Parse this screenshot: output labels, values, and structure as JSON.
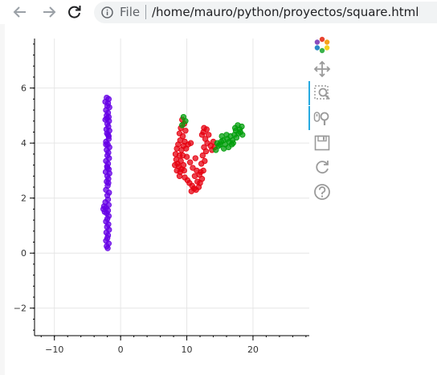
{
  "browser": {
    "scheme": "File",
    "url": "/home/mauro/python/proyectos/square.html",
    "icons": [
      "back-arrow-icon",
      "forward-arrow-icon",
      "reload-icon",
      "info-icon"
    ]
  },
  "toolbar": {
    "tools": [
      "bokeh-logo-icon",
      "pan-icon",
      "box-zoom-icon",
      "wheel-zoom-icon",
      "save-icon",
      "reset-icon",
      "help-icon"
    ],
    "active": [
      "box-zoom-icon",
      "wheel-zoom-icon"
    ]
  },
  "chart_data": {
    "type": "scatter",
    "xlim": [
      -13,
      28.5
    ],
    "ylim": [
      -3,
      7.8
    ],
    "x_ticks": [
      -10,
      0,
      10,
      20
    ],
    "y_ticks": [
      -2,
      0,
      2,
      4,
      6
    ],
    "x_tick_labels": [
      "−10",
      "0",
      "10",
      "20"
    ],
    "y_tick_labels": [
      "−2",
      "0",
      "2",
      "4",
      "6"
    ],
    "grid": true,
    "legend": "none",
    "series": [
      {
        "color": "#6600e6",
        "points": [
          [
            -2.1,
            5.65
          ],
          [
            -1.8,
            5.6
          ],
          [
            -2.3,
            5.5
          ],
          [
            -1.9,
            5.45
          ],
          [
            -2.0,
            5.35
          ],
          [
            -1.7,
            5.3
          ],
          [
            -2.2,
            5.2
          ],
          [
            -1.9,
            5.1
          ],
          [
            -2.1,
            5.0
          ],
          [
            -1.8,
            4.95
          ],
          [
            -2.3,
            4.85
          ],
          [
            -1.75,
            4.8
          ],
          [
            -2.0,
            4.7
          ],
          [
            -1.85,
            4.6
          ],
          [
            -2.15,
            4.5
          ],
          [
            -1.7,
            4.45
          ],
          [
            -2.05,
            4.35
          ],
          [
            -1.9,
            4.3
          ],
          [
            -1.8,
            4.15
          ],
          [
            -2.2,
            4.05
          ],
          [
            -1.95,
            3.95
          ],
          [
            -1.7,
            3.85
          ],
          [
            -2.1,
            3.75
          ],
          [
            -1.85,
            3.65
          ],
          [
            -2.0,
            3.55
          ],
          [
            -1.75,
            3.45
          ],
          [
            -2.2,
            3.35
          ],
          [
            -1.9,
            3.25
          ],
          [
            -2.05,
            3.15
          ],
          [
            -1.8,
            3.05
          ],
          [
            -2.25,
            2.95
          ],
          [
            -1.7,
            2.9
          ],
          [
            -2.0,
            2.8
          ],
          [
            -1.85,
            2.7
          ],
          [
            -2.1,
            2.6
          ],
          [
            -1.95,
            2.45
          ],
          [
            -2.2,
            2.3
          ],
          [
            -1.75,
            2.2
          ],
          [
            -2.0,
            2.1
          ],
          [
            -1.9,
            1.95
          ],
          [
            -2.3,
            1.85
          ],
          [
            -1.8,
            1.75
          ],
          [
            -2.5,
            1.7
          ],
          [
            -2.2,
            1.65
          ],
          [
            -2.6,
            1.6
          ],
          [
            -1.9,
            1.55
          ],
          [
            -2.4,
            1.5
          ],
          [
            -2.1,
            1.45
          ],
          [
            -1.8,
            1.35
          ],
          [
            -2.0,
            1.25
          ],
          [
            -2.2,
            1.15
          ],
          [
            -1.85,
            1.05
          ],
          [
            -2.05,
            0.95
          ],
          [
            -1.75,
            0.85
          ],
          [
            -2.15,
            0.75
          ],
          [
            -1.9,
            0.65
          ],
          [
            -2.0,
            0.55
          ],
          [
            -2.2,
            0.45
          ],
          [
            -1.8,
            0.35
          ],
          [
            -2.1,
            0.25
          ],
          [
            -1.95,
            0.18
          ],
          [
            -2.05,
            4.9
          ],
          [
            -1.8,
            4.25
          ],
          [
            -2.2,
            3.95
          ],
          [
            -2.0,
            3.1
          ],
          [
            -1.85,
            2.55
          ]
        ]
      },
      {
        "color": "#e6000f",
        "points": [
          [
            9.3,
            4.85
          ],
          [
            9.6,
            4.7
          ],
          [
            9.1,
            4.55
          ],
          [
            9.8,
            4.45
          ],
          [
            8.9,
            4.35
          ],
          [
            9.4,
            4.25
          ],
          [
            9.0,
            4.1
          ],
          [
            9.7,
            4.05
          ],
          [
            8.7,
            3.95
          ],
          [
            9.5,
            3.9
          ],
          [
            10.2,
            3.95
          ],
          [
            10.6,
            4.0
          ],
          [
            8.5,
            3.8
          ],
          [
            9.2,
            3.75
          ],
          [
            9.9,
            3.8
          ],
          [
            8.3,
            3.6
          ],
          [
            8.9,
            3.55
          ],
          [
            8.4,
            3.4
          ],
          [
            9.1,
            3.35
          ],
          [
            8.2,
            3.2
          ],
          [
            8.8,
            3.15
          ],
          [
            9.5,
            3.2
          ],
          [
            8.5,
            3.0
          ],
          [
            9.0,
            2.95
          ],
          [
            9.6,
            3.0
          ],
          [
            8.9,
            2.8
          ],
          [
            9.7,
            2.75
          ],
          [
            10.1,
            2.65
          ],
          [
            10.4,
            2.55
          ],
          [
            10.8,
            2.45
          ],
          [
            11.1,
            2.35
          ],
          [
            10.7,
            2.25
          ],
          [
            11.4,
            2.3
          ],
          [
            11.8,
            2.4
          ],
          [
            12.0,
            2.55
          ],
          [
            11.6,
            2.6
          ],
          [
            12.3,
            2.7
          ],
          [
            12.1,
            2.95
          ],
          [
            12.5,
            3.0
          ],
          [
            12.2,
            3.25
          ],
          [
            12.7,
            3.35
          ],
          [
            12.4,
            3.55
          ],
          [
            12.9,
            3.7
          ],
          [
            12.6,
            3.85
          ],
          [
            13.1,
            4.0
          ],
          [
            12.8,
            4.15
          ],
          [
            13.3,
            4.3
          ],
          [
            12.5,
            4.4
          ],
          [
            13.0,
            4.5
          ],
          [
            12.3,
            4.3
          ],
          [
            13.6,
            3.9
          ],
          [
            14.0,
            4.05
          ],
          [
            13.8,
            3.75
          ],
          [
            14.2,
            3.85
          ],
          [
            11.5,
            3.0
          ],
          [
            11.2,
            2.8
          ],
          [
            10.9,
            3.1
          ],
          [
            11.3,
            3.45
          ],
          [
            10.5,
            3.3
          ],
          [
            10.0,
            3.5
          ],
          [
            9.4,
            3.55
          ],
          [
            8.6,
            3.25
          ],
          [
            9.2,
            3.05
          ],
          [
            11.9,
            2.85
          ],
          [
            12.6,
            4.55
          ]
        ]
      },
      {
        "color": "#009e0b",
        "points": [
          [
            9.5,
            4.95
          ],
          [
            9.8,
            4.8
          ],
          [
            9.3,
            4.65
          ],
          [
            14.4,
            3.75
          ],
          [
            14.8,
            3.9
          ],
          [
            15.2,
            4.05
          ],
          [
            15.0,
            3.95
          ],
          [
            15.5,
            4.1
          ],
          [
            15.8,
            3.95
          ],
          [
            16.1,
            4.15
          ],
          [
            16.4,
            4.05
          ],
          [
            16.6,
            4.25
          ],
          [
            16.9,
            4.1
          ],
          [
            17.2,
            4.3
          ],
          [
            17.0,
            4.0
          ],
          [
            17.5,
            4.2
          ],
          [
            17.8,
            4.35
          ],
          [
            17.4,
            4.45
          ],
          [
            18.0,
            4.5
          ],
          [
            18.3,
            4.6
          ],
          [
            17.7,
            4.65
          ],
          [
            18.1,
            4.4
          ],
          [
            16.3,
            3.85
          ],
          [
            15.6,
            3.8
          ],
          [
            16.8,
            3.95
          ],
          [
            15.3,
            4.25
          ],
          [
            14.6,
            4.0
          ],
          [
            18.4,
            4.3
          ],
          [
            17.3,
            4.55
          ],
          [
            16.0,
            4.3
          ]
        ]
      }
    ]
  }
}
